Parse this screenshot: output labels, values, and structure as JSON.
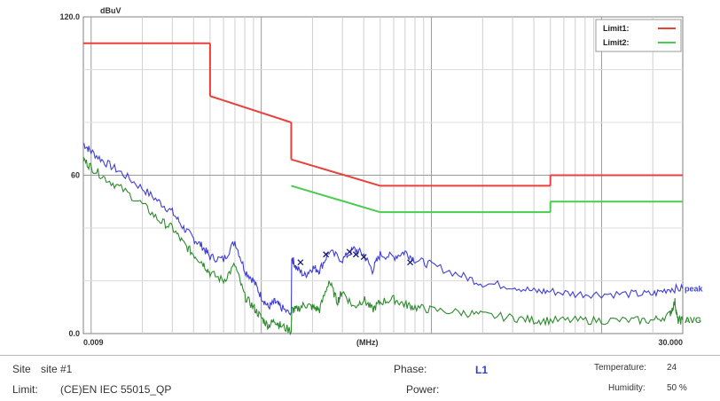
{
  "chart_data": {
    "type": "line",
    "x_scale": "log",
    "xlim": [
      0.009,
      30
    ],
    "ylim": [
      0,
      120
    ],
    "ylabel": "dBuV",
    "xlabel": "(MHz)",
    "y_tick_labels": [
      {
        "value": 120,
        "text": "120.0"
      },
      {
        "value": 60,
        "text": "60"
      },
      {
        "value": 0,
        "text": "0.0"
      }
    ],
    "x_tick_labels": [
      {
        "value": 0.009,
        "text": "0.009"
      },
      {
        "value": 30,
        "text": "30.000"
      }
    ],
    "grid": true,
    "legend_position": "top-right",
    "limits": [
      {
        "name": "Limit1:",
        "color": "#e8413c",
        "segments": [
          [
            [
              0.009,
              110
            ],
            [
              0.05,
              110
            ]
          ],
          [
            [
              0.05,
              90
            ],
            [
              0.15,
              80
            ]
          ],
          [
            [
              0.15,
              66
            ],
            [
              0.5,
              56
            ]
          ],
          [
            [
              0.5,
              56
            ],
            [
              5,
              56
            ]
          ],
          [
            [
              5,
              60
            ],
            [
              30,
              60
            ]
          ]
        ]
      },
      {
        "name": "Limit2:",
        "color": "#49cc4f",
        "segments": [
          [
            [
              0.15,
              56
            ],
            [
              0.5,
              46
            ]
          ],
          [
            [
              0.5,
              46
            ],
            [
              5,
              46
            ]
          ],
          [
            [
              5,
              50
            ],
            [
              30,
              50
            ]
          ]
        ]
      }
    ],
    "series": [
      {
        "name": "peak",
        "color": "#3f3fd6",
        "points": [
          [
            0.009,
            72
          ],
          [
            0.01,
            69
          ],
          [
            0.012,
            65
          ],
          [
            0.015,
            61
          ],
          [
            0.02,
            55
          ],
          [
            0.025,
            50
          ],
          [
            0.03,
            46
          ],
          [
            0.035,
            40
          ],
          [
            0.04,
            36
          ],
          [
            0.045,
            33
          ],
          [
            0.05,
            29
          ],
          [
            0.06,
            28
          ],
          [
            0.07,
            35
          ],
          [
            0.08,
            24
          ],
          [
            0.09,
            20
          ],
          [
            0.1,
            14
          ],
          [
            0.11,
            10
          ],
          [
            0.12,
            12
          ],
          [
            0.13,
            10
          ],
          [
            0.15,
            7
          ],
          [
            0.151,
            29
          ],
          [
            0.16,
            25
          ],
          [
            0.18,
            22
          ],
          [
            0.2,
            25
          ],
          [
            0.22,
            24
          ],
          [
            0.25,
            31
          ],
          [
            0.3,
            28
          ],
          [
            0.35,
            32
          ],
          [
            0.4,
            30
          ],
          [
            0.45,
            24
          ],
          [
            0.5,
            30
          ],
          [
            0.6,
            29
          ],
          [
            0.7,
            31
          ],
          [
            0.8,
            28
          ],
          [
            1,
            26
          ],
          [
            1.5,
            22
          ],
          [
            2,
            19
          ],
          [
            3,
            18
          ],
          [
            4,
            16
          ],
          [
            5,
            16
          ],
          [
            7,
            15
          ],
          [
            10,
            15
          ],
          [
            15,
            15
          ],
          [
            20,
            15
          ],
          [
            25,
            17
          ],
          [
            30,
            17
          ]
        ]
      },
      {
        "name": "AVG",
        "color": "#2f8a2f",
        "points": [
          [
            0.009,
            66
          ],
          [
            0.01,
            63
          ],
          [
            0.012,
            59
          ],
          [
            0.015,
            55
          ],
          [
            0.02,
            49
          ],
          [
            0.025,
            43
          ],
          [
            0.03,
            40
          ],
          [
            0.035,
            34
          ],
          [
            0.04,
            30
          ],
          [
            0.045,
            27
          ],
          [
            0.05,
            23
          ],
          [
            0.06,
            20
          ],
          [
            0.07,
            26
          ],
          [
            0.08,
            14
          ],
          [
            0.09,
            10
          ],
          [
            0.1,
            6
          ],
          [
            0.11,
            3
          ],
          [
            0.12,
            5
          ],
          [
            0.13,
            3
          ],
          [
            0.15,
            1
          ],
          [
            0.151,
            9
          ],
          [
            0.16,
            9
          ],
          [
            0.18,
            11
          ],
          [
            0.2,
            10
          ],
          [
            0.22,
            9
          ],
          [
            0.25,
            20
          ],
          [
            0.28,
            12
          ],
          [
            0.3,
            16
          ],
          [
            0.35,
            10
          ],
          [
            0.4,
            13
          ],
          [
            0.45,
            9
          ],
          [
            0.5,
            12
          ],
          [
            0.6,
            13
          ],
          [
            0.7,
            11
          ],
          [
            0.8,
            10
          ],
          [
            1,
            9
          ],
          [
            1.5,
            8
          ],
          [
            2,
            7
          ],
          [
            3,
            6
          ],
          [
            4,
            5
          ],
          [
            5,
            5
          ],
          [
            7,
            5
          ],
          [
            10,
            5
          ],
          [
            15,
            5
          ],
          [
            20,
            5
          ],
          [
            25,
            7
          ],
          [
            27,
            12
          ],
          [
            28,
            5
          ],
          [
            30,
            5
          ]
        ]
      }
    ],
    "markers": [
      [
        0.17,
        27
      ],
      [
        0.24,
        30
      ],
      [
        0.33,
        31
      ],
      [
        0.36,
        30
      ],
      [
        0.4,
        29
      ],
      [
        0.75,
        27
      ]
    ],
    "series_labels": [
      {
        "text": "peak",
        "series": 0
      },
      {
        "text": "AVG",
        "series": 1
      }
    ]
  },
  "footer": {
    "site_label": "Site",
    "site_value": "site #1",
    "limit_label": "Limit:",
    "limit_value": "(CE)EN IEC 55015_QP",
    "phase_label": "Phase:",
    "phase_value": "L1",
    "power_label": "Power:",
    "temperature_label": "Temperature:",
    "temperature_value": "24",
    "humidity_label": "Humidity:",
    "humidity_value": "50 %"
  }
}
